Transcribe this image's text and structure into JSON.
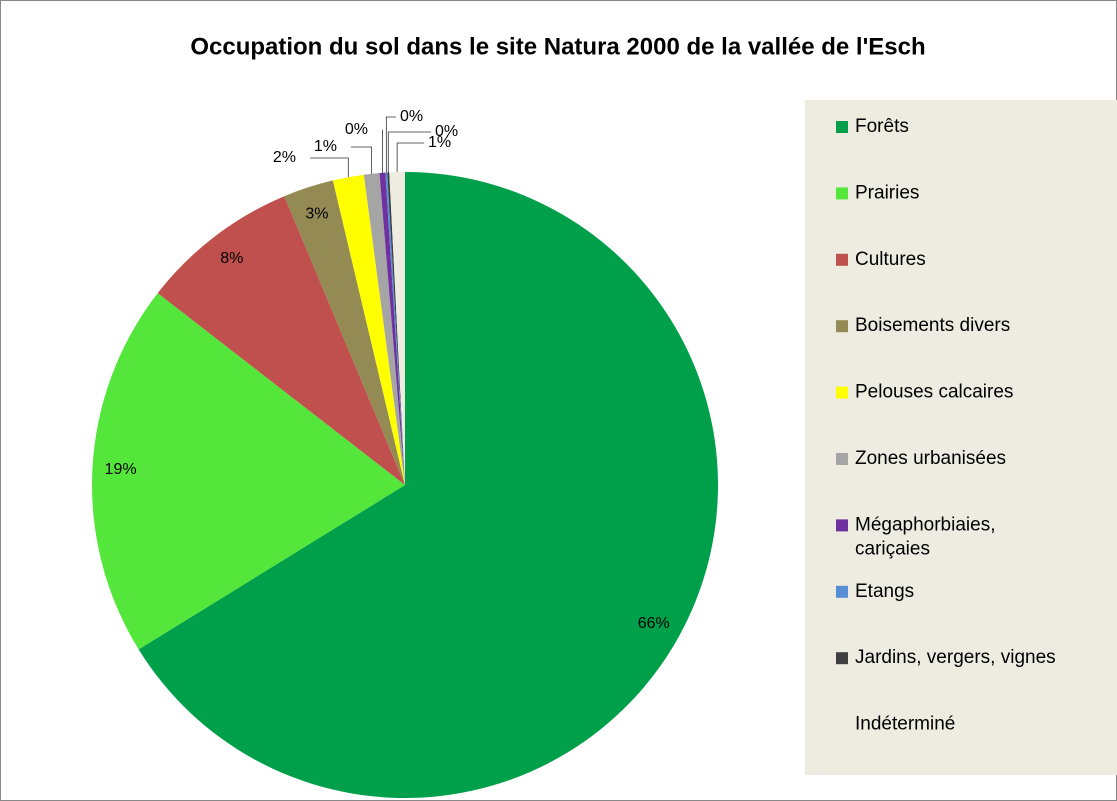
{
  "chart_data": {
    "type": "pie",
    "title": "Occupation du sol dans le site Natura 2000 de la vallée de l'Esch",
    "categories": [
      "Forêts",
      "Prairies",
      "Cultures",
      "Boisements divers",
      "Pelouses calcaires",
      "Zones urbanisées",
      "Mégaphorbiaies, cariçaies",
      "Etangs",
      "Jardins, vergers, vignes",
      "Indéterminé"
    ],
    "values": [
      66.2,
      19.3,
      8.2,
      2.6,
      1.6,
      0.8,
      0.3,
      0.1,
      0.1,
      0.8
    ],
    "value_labels": [
      "66%",
      "19%",
      "8%",
      "3%",
      "2%",
      "1%",
      "0%",
      "0%",
      "0%",
      "1%"
    ],
    "colors": [
      "#00a04a",
      "#55e63c",
      "#c0504d",
      "#948a54",
      "#ffff00",
      "#a5a5a5",
      "#7030a0",
      "#558ed5",
      "#404040",
      "#eeece1"
    ],
    "legend": "right"
  }
}
